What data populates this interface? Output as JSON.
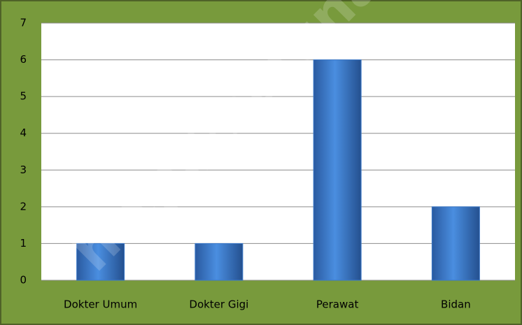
{
  "chart_data": {
    "type": "bar",
    "categories": [
      "Dokter Umum",
      "Dokter Gigi",
      "Perawat",
      "Bidan"
    ],
    "values": [
      1,
      1,
      6,
      2
    ],
    "color": "#3b78c8",
    "ylim": [
      0,
      7
    ],
    "yticks": [
      0,
      1,
      2,
      3,
      4,
      5,
      6,
      7
    ],
    "grid": true,
    "watermark": "http://natunak"
  }
}
